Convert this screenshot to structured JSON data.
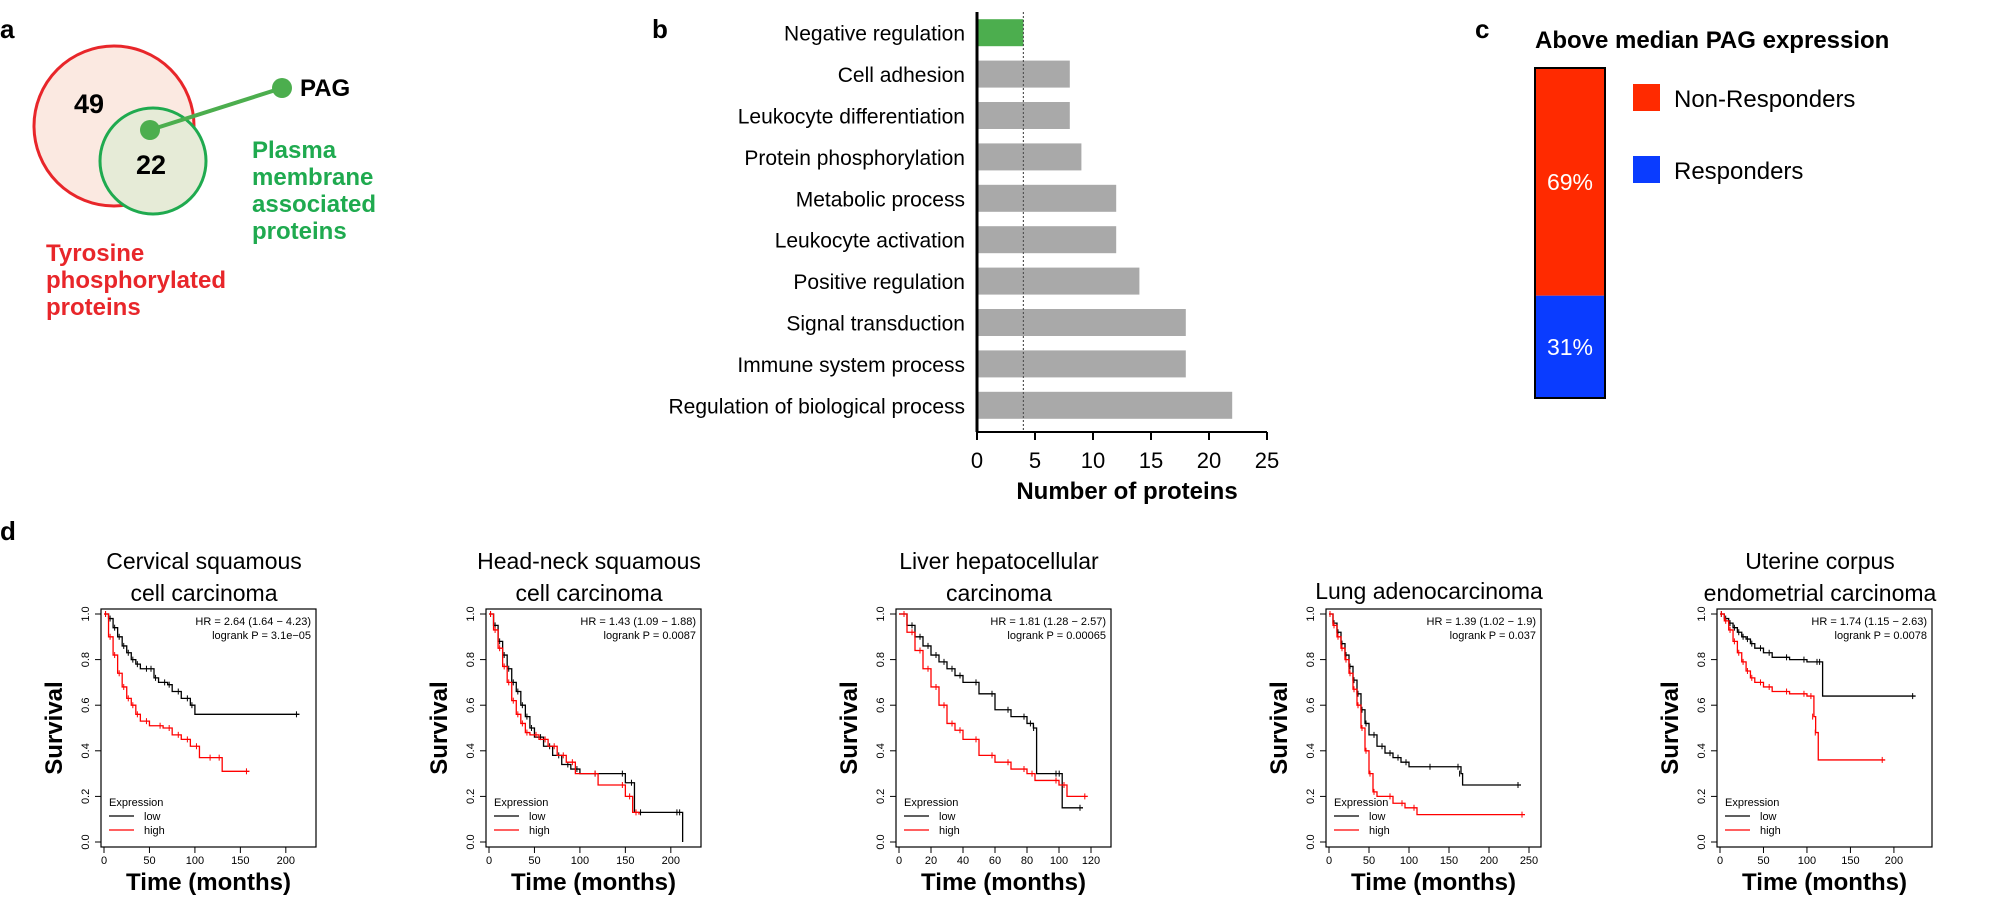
{
  "panel_letters": [
    "a",
    "b",
    "c",
    "d"
  ],
  "venn": {
    "outer_count": "49",
    "inner_count": "22",
    "callout_label": "PAG",
    "outer_label_lines": [
      "Tyrosine",
      "phosphorylated",
      "proteins"
    ],
    "inner_label_lines": [
      "Plasma",
      "membrane",
      "associated",
      "proteins"
    ],
    "colors": {
      "outer": "#e8262a",
      "outer_fill": "#fbe9e1",
      "inner": "#1faa4f",
      "inner_fill": "#e6ebd7",
      "dot": "#4cae4e"
    }
  },
  "chart_data": [
    {
      "id": "b",
      "type": "bar",
      "orientation": "horizontal",
      "categories": [
        "Negative regulation",
        "Cell adhesion",
        "Leukocyte differentiation",
        "Protein phosphorylation",
        "Metabolic process",
        "Leukocyte activation",
        "Positive regulation",
        "Signal transduction",
        "Immune system process",
        "Regulation of biological process"
      ],
      "values": [
        4,
        8,
        8,
        9,
        12,
        12,
        14,
        18,
        18,
        22
      ],
      "colors": [
        "#4cae4e",
        "#a9a9a9",
        "#a9a9a9",
        "#a9a9a9",
        "#a9a9a9",
        "#a9a9a9",
        "#a9a9a9",
        "#a9a9a9",
        "#a9a9a9",
        "#a9a9a9"
      ],
      "xlabel": "Number of proteins",
      "xlim": [
        0,
        25
      ],
      "xticks": [
        "0",
        "5",
        "10",
        "15",
        "20",
        "25"
      ],
      "reference_line": 4
    },
    {
      "id": "c",
      "type": "bar",
      "orientation": "stacked",
      "title": "Above median PAG expression",
      "series": [
        {
          "name": "Non-Responders",
          "value": 69,
          "label": "69%",
          "color": "#ff2a00"
        },
        {
          "name": "Responders",
          "value": 31,
          "label": "31%",
          "color": "#0a3cff"
        }
      ]
    },
    {
      "id": "d",
      "type": "line",
      "subtype": "kaplan-meier",
      "ylabel": "Survival",
      "xlabel": "Time (months)",
      "yticks": [
        "0.0",
        "0.2",
        "0.4",
        "0.6",
        "0.8",
        "1.0"
      ],
      "legend_title": "Expression",
      "legend_entries": [
        "low",
        "high"
      ],
      "series_colors": {
        "low": "#000000",
        "high": "#ff0000"
      },
      "plots": [
        {
          "title_lines": [
            "Cervical squamous",
            "cell carcinoma"
          ],
          "hr": "HR = 2.64 (1.64 − 4.23)",
          "p": "logrank P = 3.1e−05",
          "xmax": 220,
          "xticks": [
            0,
            50,
            100,
            150,
            200
          ],
          "low": [
            [
              0,
              1.0
            ],
            [
              5,
              0.98
            ],
            [
              10,
              0.94
            ],
            [
              15,
              0.9
            ],
            [
              20,
              0.86
            ],
            [
              25,
              0.83
            ],
            [
              30,
              0.8
            ],
            [
              35,
              0.78
            ],
            [
              40,
              0.76
            ],
            [
              50,
              0.76
            ],
            [
              55,
              0.72
            ],
            [
              60,
              0.7
            ],
            [
              70,
              0.69
            ],
            [
              75,
              0.66
            ],
            [
              85,
              0.63
            ],
            [
              95,
              0.6
            ],
            [
              100,
              0.56
            ],
            [
              215,
              0.56
            ]
          ],
          "high": [
            [
              0,
              1.0
            ],
            [
              5,
              0.9
            ],
            [
              10,
              0.82
            ],
            [
              15,
              0.74
            ],
            [
              20,
              0.68
            ],
            [
              25,
              0.63
            ],
            [
              30,
              0.6
            ],
            [
              35,
              0.56
            ],
            [
              40,
              0.53
            ],
            [
              50,
              0.51
            ],
            [
              65,
              0.5
            ],
            [
              75,
              0.47
            ],
            [
              85,
              0.45
            ],
            [
              95,
              0.42
            ],
            [
              105,
              0.37
            ],
            [
              120,
              0.37
            ],
            [
              130,
              0.31
            ],
            [
              160,
              0.31
            ]
          ]
        },
        {
          "title_lines": [
            "Head-neck squamous",
            "cell carcinoma"
          ],
          "hr": "HR = 1.43 (1.09 − 1.88)",
          "p": "logrank P = 0.0087",
          "xmax": 220,
          "xticks": [
            0,
            50,
            100,
            150,
            200
          ],
          "low": [
            [
              0,
              1.0
            ],
            [
              5,
              0.95
            ],
            [
              10,
              0.88
            ],
            [
              15,
              0.82
            ],
            [
              20,
              0.76
            ],
            [
              25,
              0.7
            ],
            [
              30,
              0.66
            ],
            [
              35,
              0.6
            ],
            [
              40,
              0.55
            ],
            [
              45,
              0.5
            ],
            [
              50,
              0.46
            ],
            [
              60,
              0.42
            ],
            [
              70,
              0.38
            ],
            [
              80,
              0.34
            ],
            [
              90,
              0.32
            ],
            [
              100,
              0.3
            ],
            [
              120,
              0.3
            ],
            [
              150,
              0.26
            ],
            [
              160,
              0.13
            ],
            [
              170,
              0.13
            ],
            [
              210,
              0.13
            ],
            [
              213,
              0.0
            ]
          ],
          "high": [
            [
              0,
              1.0
            ],
            [
              5,
              0.93
            ],
            [
              10,
              0.85
            ],
            [
              15,
              0.77
            ],
            [
              20,
              0.7
            ],
            [
              25,
              0.62
            ],
            [
              30,
              0.56
            ],
            [
              35,
              0.52
            ],
            [
              40,
              0.48
            ],
            [
              45,
              0.47
            ],
            [
              55,
              0.45
            ],
            [
              65,
              0.42
            ],
            [
              75,
              0.38
            ],
            [
              85,
              0.35
            ],
            [
              95,
              0.3
            ],
            [
              120,
              0.25
            ],
            [
              150,
              0.2
            ],
            [
              158,
              0.13
            ],
            [
              165,
              0.12
            ]
          ]
        },
        {
          "title_lines": [
            "Liver hepatocellular",
            "carcinoma"
          ],
          "hr": "HR = 1.81 (1.28 − 2.57)",
          "p": "logrank P = 0.00065",
          "xmax": 125,
          "xticks": [
            0,
            20,
            40,
            60,
            80,
            100,
            120
          ],
          "low": [
            [
              0,
              1.0
            ],
            [
              5,
              0.95
            ],
            [
              10,
              0.9
            ],
            [
              15,
              0.86
            ],
            [
              20,
              0.82
            ],
            [
              25,
              0.79
            ],
            [
              30,
              0.76
            ],
            [
              35,
              0.73
            ],
            [
              40,
              0.7
            ],
            [
              50,
              0.65
            ],
            [
              60,
              0.58
            ],
            [
              70,
              0.55
            ],
            [
              80,
              0.52
            ],
            [
              84,
              0.5
            ],
            [
              86,
              0.3
            ],
            [
              100,
              0.3
            ],
            [
              102,
              0.15
            ],
            [
              115,
              0.15
            ]
          ],
          "high": [
            [
              0,
              1.0
            ],
            [
              5,
              0.92
            ],
            [
              10,
              0.84
            ],
            [
              15,
              0.76
            ],
            [
              20,
              0.68
            ],
            [
              25,
              0.6
            ],
            [
              30,
              0.52
            ],
            [
              35,
              0.49
            ],
            [
              40,
              0.45
            ],
            [
              50,
              0.38
            ],
            [
              60,
              0.35
            ],
            [
              70,
              0.32
            ],
            [
              80,
              0.3
            ],
            [
              85,
              0.27
            ],
            [
              100,
              0.25
            ],
            [
              105,
              0.2
            ],
            [
              118,
              0.2
            ]
          ]
        },
        {
          "title_lines": [
            "Lung adenocarcinoma"
          ],
          "hr": "HR = 1.39 (1.02 − 1.9)",
          "p": "logrank P = 0.037",
          "xmax": 250,
          "xticks": [
            0,
            50,
            100,
            150,
            200,
            250
          ],
          "low": [
            [
              0,
              1.0
            ],
            [
              5,
              0.96
            ],
            [
              10,
              0.92
            ],
            [
              15,
              0.87
            ],
            [
              20,
              0.82
            ],
            [
              25,
              0.77
            ],
            [
              30,
              0.71
            ],
            [
              35,
              0.65
            ],
            [
              40,
              0.58
            ],
            [
              45,
              0.52
            ],
            [
              50,
              0.47
            ],
            [
              60,
              0.42
            ],
            [
              70,
              0.39
            ],
            [
              80,
              0.37
            ],
            [
              90,
              0.35
            ],
            [
              100,
              0.33
            ],
            [
              130,
              0.33
            ],
            [
              165,
              0.3
            ],
            [
              167,
              0.25
            ],
            [
              240,
              0.25
            ]
          ],
          "high": [
            [
              0,
              1.0
            ],
            [
              5,
              0.95
            ],
            [
              10,
              0.9
            ],
            [
              15,
              0.85
            ],
            [
              20,
              0.8
            ],
            [
              25,
              0.74
            ],
            [
              30,
              0.67
            ],
            [
              35,
              0.6
            ],
            [
              40,
              0.5
            ],
            [
              45,
              0.4
            ],
            [
              50,
              0.3
            ],
            [
              55,
              0.22
            ],
            [
              60,
              0.2
            ],
            [
              80,
              0.17
            ],
            [
              95,
              0.15
            ],
            [
              110,
              0.12
            ],
            [
              245,
              0.12
            ]
          ]
        },
        {
          "title_lines": [
            "Uterine corpus",
            "endometrial carcinoma"
          ],
          "hr": "HR = 1.74 (1.15 − 2.63)",
          "p": "logrank P = 0.0078",
          "xmax": 230,
          "xticks": [
            0,
            50,
            100,
            150,
            200
          ],
          "low": [
            [
              0,
              1.0
            ],
            [
              5,
              0.98
            ],
            [
              10,
              0.96
            ],
            [
              15,
              0.94
            ],
            [
              20,
              0.92
            ],
            [
              25,
              0.9
            ],
            [
              30,
              0.89
            ],
            [
              35,
              0.87
            ],
            [
              40,
              0.85
            ],
            [
              50,
              0.83
            ],
            [
              60,
              0.81
            ],
            [
              80,
              0.8
            ],
            [
              100,
              0.79
            ],
            [
              115,
              0.79
            ],
            [
              118,
              0.64
            ],
            [
              225,
              0.64
            ]
          ],
          "high": [
            [
              0,
              1.0
            ],
            [
              5,
              0.97
            ],
            [
              10,
              0.93
            ],
            [
              15,
              0.88
            ],
            [
              20,
              0.83
            ],
            [
              25,
              0.79
            ],
            [
              30,
              0.75
            ],
            [
              35,
              0.72
            ],
            [
              40,
              0.7
            ],
            [
              50,
              0.68
            ],
            [
              60,
              0.66
            ],
            [
              80,
              0.65
            ],
            [
              100,
              0.64
            ],
            [
              108,
              0.55
            ],
            [
              110,
              0.48
            ],
            [
              113,
              0.36
            ],
            [
              190,
              0.36
            ]
          ]
        }
      ]
    }
  ]
}
